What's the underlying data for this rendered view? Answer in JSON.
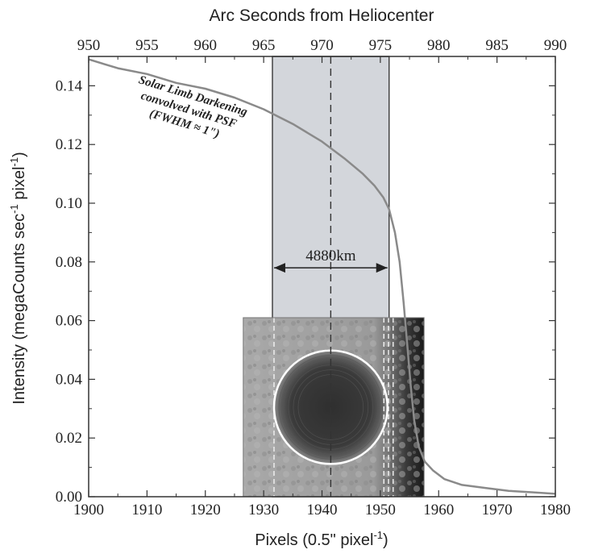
{
  "chart_data": {
    "type": "line",
    "title": "",
    "xlabel": "Pixels (0.5\" pixel",
    "xlabel_sup": "-1",
    "xlabel_end": ")",
    "x2label": "Arc Seconds from Heliocenter",
    "ylabel_prefix": "Intensity (megaCounts sec",
    "ylabel_sup1": "-1",
    "ylabel_mid": " pixel",
    "ylabel_sup2": "-1",
    "ylabel_end": ")",
    "xlim": [
      1900,
      1980
    ],
    "ylim": [
      0,
      0.15
    ],
    "x2lim": [
      950,
      990
    ],
    "xticks": [
      1900,
      1910,
      1920,
      1930,
      1940,
      1950,
      1960,
      1970,
      1980
    ],
    "xtick_labels": [
      "1900",
      "1910",
      "1920",
      "1930",
      "1940",
      "1950",
      "1960",
      "1970",
      "1980"
    ],
    "yticks": [
      0,
      0.02,
      0.04,
      0.06,
      0.08,
      0.1,
      0.12,
      0.14
    ],
    "ytick_labels": [
      "0.00",
      "0.02",
      "0.04",
      "0.06",
      "0.08",
      "0.10",
      "0.12",
      "0.14"
    ],
    "x2ticks": [
      950,
      955,
      960,
      965,
      970,
      975,
      980,
      985,
      990
    ],
    "x2tick_labels": [
      "950",
      "955",
      "960",
      "965",
      "970",
      "975",
      "980",
      "985",
      "990"
    ],
    "grid": false,
    "line_color": "#8a8a8a",
    "series": [
      {
        "name": "",
        "x": [
          1900,
          1905,
          1910,
          1915,
          1920,
          1925,
          1930,
          1935,
          1940,
          1944,
          1947,
          1949,
          1950.5,
          1951.5,
          1952.5,
          1953.3,
          1954,
          1954.6,
          1955.2,
          1955.8,
          1956.6,
          1957.6,
          1959,
          1961,
          1964,
          1968,
          1972,
          1976,
          1980
        ],
        "y": [
          0.149,
          0.146,
          0.144,
          0.141,
          0.139,
          0.136,
          0.132,
          0.127,
          0.121,
          0.115,
          0.11,
          0.106,
          0.102,
          0.098,
          0.09,
          0.08,
          0.066,
          0.052,
          0.038,
          0.026,
          0.017,
          0.012,
          0.009,
          0.006,
          0.004,
          0.003,
          0.002,
          0.0015,
          0.001
        ]
      }
    ],
    "shaded_region": {
      "x": [
        1931.5,
        1951.5
      ],
      "color": "#d3d6db"
    },
    "dashed_line_x": 1941.5,
    "span": {
      "label": "4880km",
      "x": [
        1931.5,
        1951.5
      ],
      "y": 0.078
    },
    "annotation": {
      "lines": [
        "Solar Limb Darkening",
        "convolved with PSF",
        "(FWHM ≈ 1\")"
      ]
    },
    "inset": {
      "x": [
        1926.5,
        1957.5
      ],
      "y": [
        0,
        0.061
      ]
    }
  }
}
